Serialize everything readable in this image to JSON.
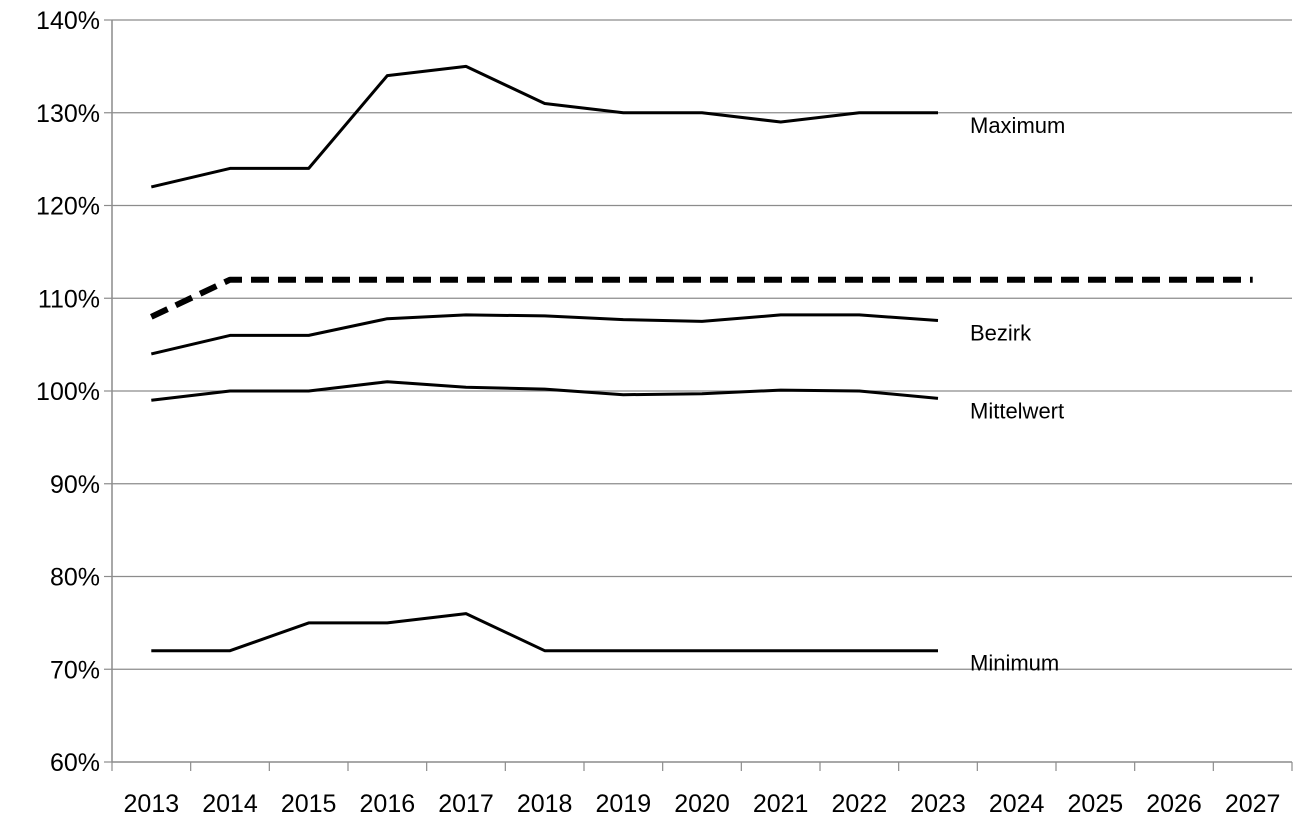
{
  "chart_data": {
    "type": "line",
    "title": "",
    "xlabel": "",
    "ylabel": "",
    "x": [
      "2013",
      "2014",
      "2015",
      "2016",
      "2017",
      "2018",
      "2019",
      "2020",
      "2021",
      "2022",
      "2023",
      "2024",
      "2025",
      "2026",
      "2027"
    ],
    "y_ticks": [
      "60%",
      "70%",
      "80%",
      "90%",
      "100%",
      "110%",
      "120%",
      "130%",
      "140%"
    ],
    "ylim": [
      60,
      140
    ],
    "y_unit": "%",
    "grid": "horizontal",
    "legend": "labels at line ends",
    "series": [
      {
        "name": "Maximum",
        "style": "solid",
        "color": "#000000",
        "values": [
          122,
          124,
          124,
          134,
          135,
          131,
          130,
          130,
          129,
          130,
          130,
          null,
          null,
          null,
          null
        ]
      },
      {
        "name": "",
        "style": "dashed",
        "color": "#000000",
        "values": [
          108,
          112,
          112,
          112,
          112,
          112,
          112,
          112,
          112,
          112,
          112,
          112,
          112,
          112,
          112
        ]
      },
      {
        "name": "Bezirk",
        "style": "solid",
        "color": "#000000",
        "values": [
          104,
          106,
          106,
          107.8,
          108.2,
          108.1,
          107.7,
          107.5,
          108.2,
          108.2,
          107.6,
          null,
          null,
          null,
          null
        ]
      },
      {
        "name": "Mittelwert",
        "style": "solid",
        "color": "#000000",
        "values": [
          99,
          100,
          100,
          101,
          100.4,
          100.2,
          99.6,
          99.7,
          100.1,
          100,
          99.2,
          null,
          null,
          null,
          null
        ]
      },
      {
        "name": "Minimum",
        "style": "solid",
        "color": "#000000",
        "values": [
          72,
          72,
          75,
          75,
          76,
          72,
          72,
          72,
          72,
          72,
          72,
          null,
          null,
          null,
          null
        ]
      }
    ]
  }
}
